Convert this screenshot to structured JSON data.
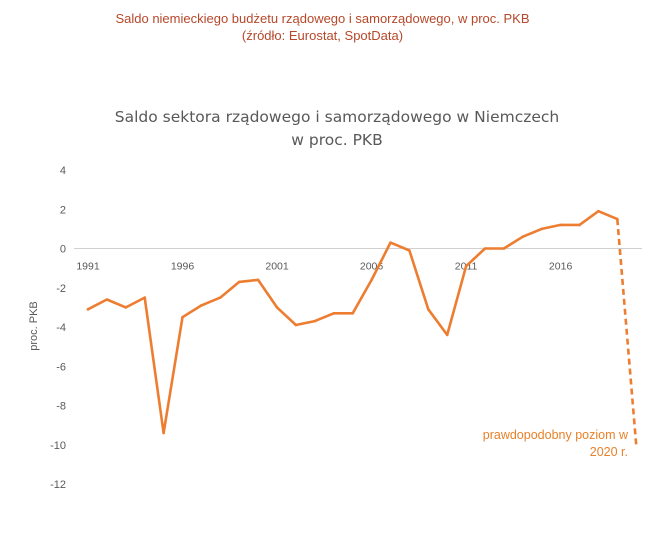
{
  "caption": {
    "line1": "Saldo niemieckiego budżetu rządowego i samorządowego, w proc. PKB",
    "line2": "(źródło: Eurostat, SpotData)"
  },
  "chart_data": {
    "type": "line",
    "title_line1": "Saldo sektora rządowego i samorządowego w Niemczech",
    "title_line2": "w proc. PKB",
    "xlabel": "",
    "ylabel": "proc. PKB",
    "ylim": [
      -12,
      4
    ],
    "yticks": [
      "4",
      "2",
      "0",
      "-2",
      "-4",
      "-6",
      "-8",
      "-10",
      "-12"
    ],
    "xticks": [
      "1991",
      "1996",
      "2001",
      "2006",
      "2011",
      "2016"
    ],
    "grid": false,
    "line_color": "#ed7d31",
    "series": [
      {
        "x": [
          1991,
          1992,
          1993,
          1994,
          1995,
          1996,
          1997,
          1998,
          1999,
          2000,
          2001,
          2002,
          2003,
          2004,
          2005,
          2006,
          2007,
          2008,
          2009,
          2010,
          2011,
          2012,
          2013,
          2014,
          2015,
          2016,
          2017,
          2018,
          2019
        ],
        "values": [
          -3.1,
          -2.6,
          -3.0,
          -2.5,
          -9.4,
          -3.5,
          -2.9,
          -2.5,
          -1.7,
          -1.6,
          -3.0,
          -3.9,
          -3.7,
          -3.3,
          -3.3,
          -1.6,
          0.3,
          -0.1,
          -3.1,
          -4.4,
          -0.9,
          0.0,
          0.0,
          0.6,
          1.0,
          1.2,
          1.2,
          1.9,
          1.5
        ]
      }
    ],
    "projection": {
      "x": [
        2019,
        2020
      ],
      "values": [
        1.5,
        -10.0
      ],
      "style": "dashed",
      "label_line1": "prawdopodobny poziom w",
      "label_line2": "2020 r."
    }
  }
}
